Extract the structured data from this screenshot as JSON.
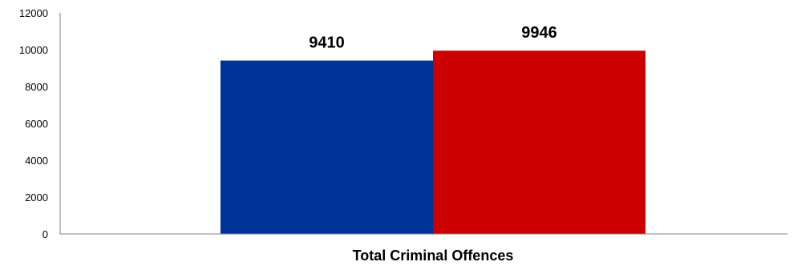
{
  "chart_data": {
    "type": "bar",
    "categories": [
      "Total Criminal Offences"
    ],
    "series": [
      {
        "values": [
          9410
        ],
        "color": "#003399"
      },
      {
        "values": [
          9946
        ],
        "color": "#CC0000"
      }
    ],
    "ylim": [
      0,
      12000
    ],
    "yticks": [
      0,
      2000,
      4000,
      6000,
      8000,
      10000,
      12000
    ],
    "grid": false,
    "legend": "none",
    "data_labels": true
  }
}
